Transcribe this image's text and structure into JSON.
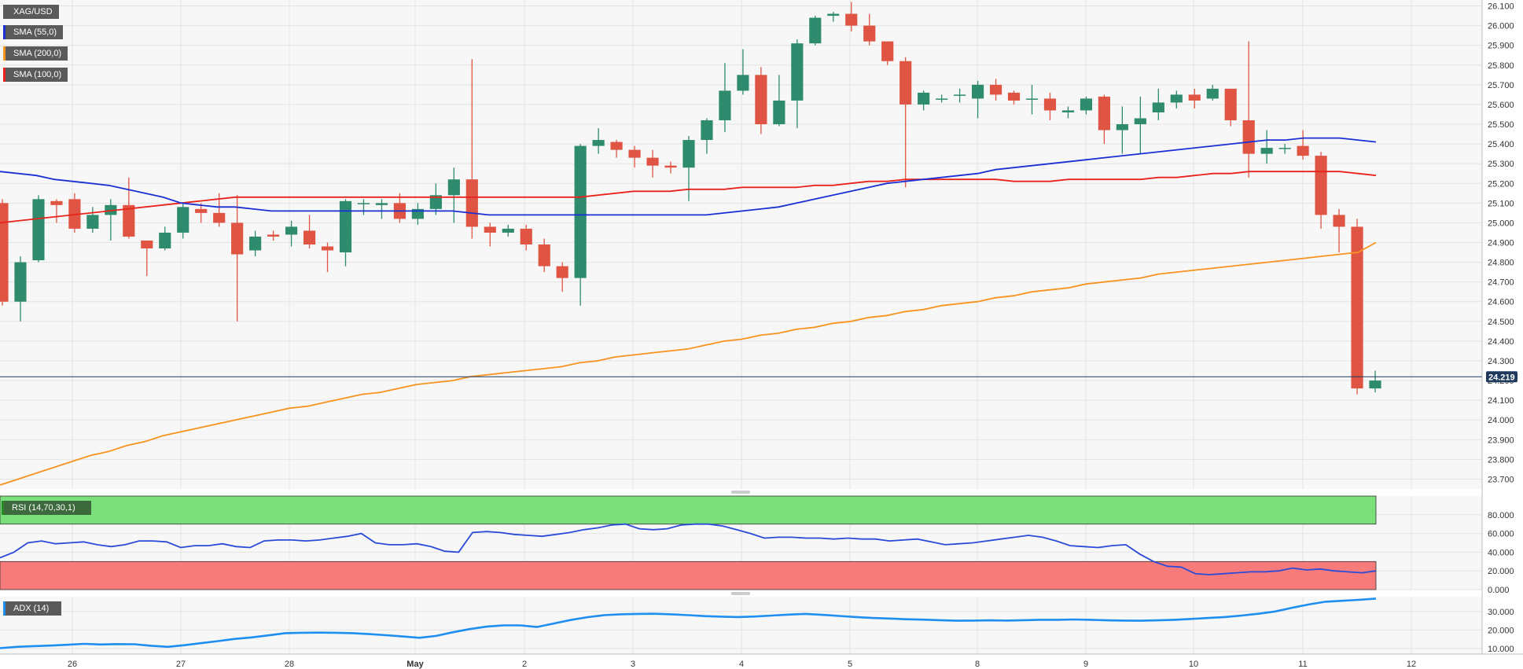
{
  "chart_data": [
    {
      "type": "candlestick",
      "symbol": "XAG/USD",
      "legend": [
        {
          "label": "XAG/USD",
          "color": "#5a5a5a"
        },
        {
          "label": "SMA (55,0)",
          "color": "#1a2fd4"
        },
        {
          "label": "SMA (200,0)",
          "color": "#f7931e"
        },
        {
          "label": "SMA (100,0)",
          "color": "#e8231c"
        }
      ],
      "last_price": "24.219",
      "ylim": [
        23.65,
        26.13
      ],
      "y_ticks": [
        "26.100",
        "26.000",
        "25.900",
        "25.800",
        "25.700",
        "25.600",
        "25.500",
        "25.400",
        "25.300",
        "25.200",
        "25.100",
        "25.000",
        "24.900",
        "24.800",
        "24.700",
        "24.600",
        "24.500",
        "24.400",
        "24.300",
        "24.200",
        "24.100",
        "24.000",
        "23.900",
        "23.800",
        "23.700"
      ],
      "x_ticks": [
        "26",
        "27",
        "28",
        "May",
        "2",
        "3",
        "4",
        "5",
        "8",
        "9",
        "10",
        "11",
        "12"
      ],
      "colors": {
        "up": "#2e8b6e",
        "down": "#e05443",
        "sma55": "#1a2fd4",
        "sma100": "#e8231c",
        "sma200": "#f7931e",
        "price_line": "#1f3a5c"
      },
      "candles": [
        [
          25.1,
          24.6,
          25.12,
          24.58
        ],
        [
          24.6,
          24.8,
          24.83,
          24.5
        ],
        [
          24.81,
          25.12,
          25.14,
          24.8
        ],
        [
          25.11,
          25.09,
          25.12,
          25.0
        ],
        [
          25.12,
          24.97,
          25.15,
          24.95
        ],
        [
          24.97,
          25.04,
          25.08,
          24.95
        ],
        [
          25.04,
          25.09,
          25.12,
          24.91
        ],
        [
          25.09,
          24.93,
          25.23,
          24.92
        ],
        [
          24.91,
          24.87,
          24.9,
          24.73
        ],
        [
          24.87,
          24.95,
          24.98,
          24.86
        ],
        [
          24.95,
          25.08,
          25.1,
          24.92
        ],
        [
          25.07,
          25.05,
          25.1,
          25.0
        ],
        [
          25.05,
          25.0,
          25.15,
          24.98
        ],
        [
          25.0,
          24.84,
          25.14,
          24.5
        ],
        [
          24.86,
          24.93,
          24.96,
          24.83
        ],
        [
          24.94,
          24.93,
          24.96,
          24.91
        ],
        [
          24.94,
          24.98,
          25.01,
          24.88
        ],
        [
          24.96,
          24.89,
          25.04,
          24.87
        ],
        [
          24.88,
          24.86,
          24.9,
          24.75
        ],
        [
          24.85,
          25.11,
          25.12,
          24.78
        ],
        [
          25.1,
          25.1,
          25.12,
          25.04
        ],
        [
          25.09,
          25.1,
          25.12,
          25.02
        ],
        [
          25.1,
          25.02,
          25.15,
          25.0
        ],
        [
          25.02,
          25.07,
          25.1,
          24.99
        ],
        [
          25.07,
          25.14,
          25.2,
          25.04
        ],
        [
          25.14,
          25.22,
          25.28,
          25.0
        ],
        [
          25.22,
          24.98,
          25.83,
          24.92
        ],
        [
          24.98,
          24.95,
          25.0,
          24.88
        ],
        [
          24.95,
          24.97,
          24.99,
          24.93
        ],
        [
          24.97,
          24.89,
          24.99,
          24.86
        ],
        [
          24.89,
          24.78,
          24.92,
          24.75
        ],
        [
          24.78,
          24.72,
          24.8,
          24.65
        ],
        [
          24.72,
          25.39,
          25.4,
          24.58
        ],
        [
          25.39,
          25.42,
          25.48,
          25.35
        ],
        [
          25.41,
          25.37,
          25.42,
          25.33
        ],
        [
          25.37,
          25.33,
          25.39,
          25.28
        ],
        [
          25.33,
          25.29,
          25.37,
          25.23
        ],
        [
          25.29,
          25.28,
          25.31,
          25.25
        ],
        [
          25.28,
          25.42,
          25.44,
          25.11
        ],
        [
          25.42,
          25.52,
          25.53,
          25.35
        ],
        [
          25.52,
          25.67,
          25.81,
          25.46
        ],
        [
          25.67,
          25.75,
          25.88,
          25.65
        ],
        [
          25.75,
          25.5,
          25.79,
          25.45
        ],
        [
          25.5,
          25.62,
          25.75,
          25.49
        ],
        [
          25.62,
          25.91,
          25.93,
          25.48
        ],
        [
          25.91,
          26.04,
          26.05,
          25.9
        ],
        [
          26.05,
          26.06,
          26.07,
          26.02
        ],
        [
          26.06,
          26.0,
          26.12,
          25.97
        ],
        [
          26.0,
          25.92,
          26.06,
          25.9
        ],
        [
          25.92,
          25.82,
          25.92,
          25.8
        ],
        [
          25.82,
          25.6,
          25.84,
          25.18
        ],
        [
          25.6,
          25.66,
          25.67,
          25.57
        ],
        [
          25.63,
          25.63,
          25.65,
          25.61
        ],
        [
          25.65,
          25.65,
          25.68,
          25.61
        ],
        [
          25.63,
          25.7,
          25.72,
          25.53
        ],
        [
          25.7,
          25.65,
          25.73,
          25.62
        ],
        [
          25.66,
          25.62,
          25.67,
          25.6
        ],
        [
          25.63,
          25.63,
          25.7,
          25.55
        ],
        [
          25.63,
          25.57,
          25.66,
          25.52
        ],
        [
          25.56,
          25.57,
          25.59,
          25.53
        ],
        [
          25.57,
          25.63,
          25.64,
          25.55
        ],
        [
          25.64,
          25.47,
          25.65,
          25.4
        ],
        [
          25.47,
          25.5,
          25.59,
          25.35
        ],
        [
          25.5,
          25.53,
          25.64,
          25.35
        ],
        [
          25.56,
          25.61,
          25.68,
          25.52
        ],
        [
          25.61,
          25.65,
          25.67,
          25.58
        ],
        [
          25.65,
          25.62,
          25.68,
          25.58
        ],
        [
          25.63,
          25.68,
          25.7,
          25.62
        ],
        [
          25.68,
          25.52,
          25.68,
          25.49
        ],
        [
          25.52,
          25.35,
          25.92,
          25.23
        ],
        [
          25.35,
          25.38,
          25.47,
          25.3
        ],
        [
          25.38,
          25.38,
          25.4,
          25.35
        ],
        [
          25.39,
          25.34,
          25.47,
          25.32
        ],
        [
          25.34,
          25.04,
          25.36,
          24.97
        ],
        [
          25.04,
          24.98,
          25.07,
          24.85
        ],
        [
          24.98,
          24.16,
          25.02,
          24.13
        ],
        [
          24.16,
          24.2,
          24.25,
          24.14
        ]
      ],
      "sma55": [
        25.26,
        25.25,
        25.24,
        25.22,
        25.21,
        25.2,
        25.19,
        25.17,
        25.15,
        25.13,
        25.1,
        25.09,
        25.08,
        25.08,
        25.07,
        25.06,
        25.06,
        25.06,
        25.06,
        25.06,
        25.06,
        25.06,
        25.06,
        25.06,
        25.06,
        25.06,
        25.05,
        25.04,
        25.04,
        25.04,
        25.04,
        25.04,
        25.04,
        25.04,
        25.04,
        25.04,
        25.04,
        25.04,
        25.04,
        25.04,
        25.05,
        25.06,
        25.07,
        25.08,
        25.1,
        25.12,
        25.14,
        25.16,
        25.18,
        25.2,
        25.21,
        25.22,
        25.23,
        25.24,
        25.25,
        25.27,
        25.28,
        25.29,
        25.3,
        25.31,
        25.32,
        25.33,
        25.34,
        25.35,
        25.36,
        25.37,
        25.38,
        25.39,
        25.4,
        25.41,
        25.42,
        25.42,
        25.43,
        25.43,
        25.43,
        25.42,
        25.41
      ],
      "sma100": [
        25.0,
        25.01,
        25.02,
        25.03,
        25.04,
        25.05,
        25.06,
        25.07,
        25.08,
        25.09,
        25.1,
        25.11,
        25.12,
        25.13,
        25.13,
        25.13,
        25.13,
        25.13,
        25.13,
        25.13,
        25.13,
        25.13,
        25.13,
        25.13,
        25.13,
        25.13,
        25.13,
        25.13,
        25.13,
        25.13,
        25.13,
        25.13,
        25.13,
        25.14,
        25.15,
        25.16,
        25.16,
        25.16,
        25.17,
        25.17,
        25.17,
        25.18,
        25.18,
        25.18,
        25.18,
        25.19,
        25.19,
        25.2,
        25.21,
        25.21,
        25.22,
        25.22,
        25.22,
        25.22,
        25.22,
        25.22,
        25.21,
        25.21,
        25.21,
        25.22,
        25.22,
        25.22,
        25.22,
        25.22,
        25.23,
        25.23,
        25.24,
        25.25,
        25.25,
        25.26,
        25.26,
        25.26,
        25.26,
        25.26,
        25.26,
        25.25,
        25.24
      ],
      "sma200": [
        23.67,
        23.7,
        23.73,
        23.76,
        23.79,
        23.82,
        23.84,
        23.87,
        23.89,
        23.92,
        23.94,
        23.96,
        23.98,
        24.0,
        24.02,
        24.04,
        24.06,
        24.07,
        24.09,
        24.11,
        24.13,
        24.14,
        24.16,
        24.18,
        24.19,
        24.2,
        24.22,
        24.23,
        24.24,
        24.25,
        24.26,
        24.27,
        24.29,
        24.3,
        24.32,
        24.33,
        24.34,
        24.35,
        24.36,
        24.38,
        24.4,
        24.41,
        24.43,
        24.44,
        24.46,
        24.47,
        24.49,
        24.5,
        24.52,
        24.53,
        24.55,
        24.56,
        24.58,
        24.59,
        24.6,
        24.62,
        24.63,
        24.65,
        24.66,
        24.67,
        24.69,
        24.7,
        24.71,
        24.72,
        24.74,
        24.75,
        24.76,
        24.77,
        24.78,
        24.79,
        24.8,
        24.81,
        24.82,
        24.83,
        24.84,
        24.85,
        24.9
      ]
    },
    {
      "type": "line",
      "name": "RSI (14,70,30,1)",
      "ylim": [
        0,
        100
      ],
      "y_ticks": [
        "80.000",
        "60.000",
        "40.000",
        "20.000",
        "0.000"
      ],
      "overbought": 70,
      "oversold": 30,
      "colors": {
        "line": "#2a4bd7",
        "overbought_fill": "#7be07b",
        "oversold_fill": "#f87b7b"
      },
      "values": [
        34,
        40,
        50,
        52,
        49,
        50,
        51,
        48,
        46,
        48,
        52,
        52,
        51,
        45,
        47,
        47,
        49,
        46,
        45,
        52,
        53,
        53,
        52,
        53,
        55,
        57,
        60,
        50,
        48,
        48,
        49,
        46,
        41,
        40,
        61,
        62,
        61,
        59,
        58,
        57,
        59,
        61,
        64,
        66,
        69,
        70,
        65,
        64,
        65,
        69,
        70,
        70,
        68,
        64,
        60,
        55,
        56,
        56,
        55,
        55,
        54,
        55,
        54,
        54,
        52,
        53,
        54,
        51,
        48,
        49,
        50,
        52,
        54,
        56,
        58,
        56,
        52,
        47,
        46,
        45,
        47,
        48,
        38,
        30,
        25,
        24,
        17,
        16,
        17,
        18,
        19,
        19,
        20,
        23,
        21,
        22,
        20,
        19,
        18,
        20
      ]
    },
    {
      "type": "line",
      "name": "ADX (14)",
      "ylim": [
        7,
        38
      ],
      "y_ticks": [
        "30.000",
        "20.000",
        "10.000"
      ],
      "colors": {
        "line": "#1e8ef0"
      },
      "values": [
        10.2,
        10.9,
        11.3,
        11.6,
        12.0,
        12.5,
        12.2,
        12.4,
        12.3,
        11.5,
        10.9,
        11.8,
        12.9,
        14.0,
        15.2,
        16.0,
        17.1,
        18.3,
        18.5,
        18.6,
        18.5,
        18.3,
        17.8,
        17.2,
        16.5,
        15.8,
        16.8,
        18.8,
        20.5,
        21.8,
        22.5,
        22.5,
        21.6,
        23.5,
        25.4,
        26.9,
        28.0,
        28.5,
        28.7,
        28.8,
        28.5,
        28.0,
        27.5,
        27.2,
        27.0,
        27.3,
        27.8,
        28.3,
        28.7,
        28.2,
        27.6,
        27.0,
        26.5,
        26.2,
        25.8,
        25.6,
        25.3,
        25.0,
        25.1,
        25.2,
        25.1,
        25.3,
        25.5,
        25.5,
        25.7,
        25.5,
        25.2,
        25.1,
        25.0,
        25.2,
        25.5,
        26.0,
        26.5,
        27.0,
        27.8,
        28.8,
        30.0,
        32.0,
        33.8,
        35.3,
        35.8,
        36.3,
        37.0
      ]
    }
  ]
}
